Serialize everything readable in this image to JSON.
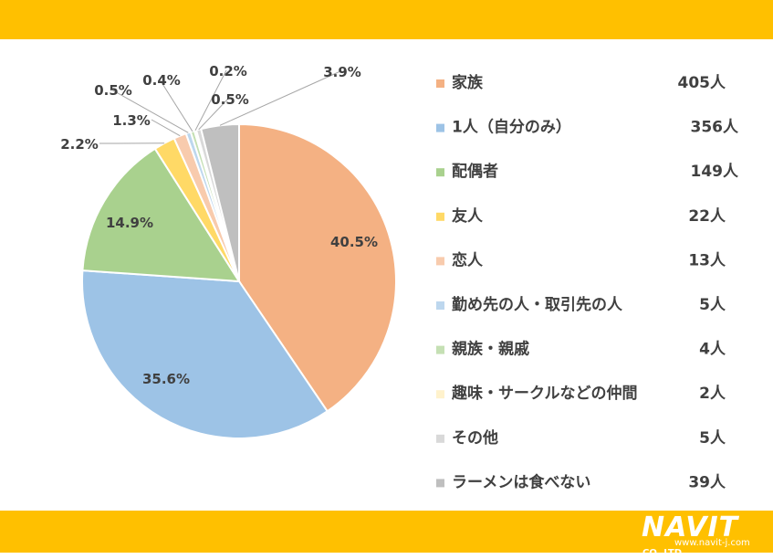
{
  "chart_data": {
    "type": "pie",
    "categories": [
      "家族",
      "1人（自分のみ）",
      "配偶者",
      "友人",
      "恋人",
      "勤め先の人・取引先の人",
      "親族・親戚",
      "趣味・サークルなどの仲間",
      "その他",
      "ラーメンは食べない"
    ],
    "values": [
      405,
      356,
      149,
      22,
      13,
      5,
      4,
      2,
      5,
      39
    ],
    "value_labels": [
      "405人",
      "356人",
      "149人",
      "22人",
      "13人",
      "5人",
      "4人",
      "2人",
      "5人",
      "39人"
    ],
    "percent_labels": [
      "40.5%",
      "35.6%",
      "14.9%",
      "2.2%",
      "1.3%",
      "0.5%",
      "0.4%",
      "0.2%",
      "0.5%",
      "3.9%"
    ],
    "colors": [
      "#F4B183",
      "#9DC3E6",
      "#A9D18E",
      "#FFD966",
      "#F8CBAD",
      "#BDD7EE",
      "#C5E0B4",
      "#FFF2CC",
      "#D9D9D9",
      "#BFBFBF"
    ],
    "start": "12 o'clock",
    "direction": "clockwise",
    "legend_position": "right"
  },
  "branding": {
    "name": "NAVIT",
    "suffix": "CO.,LTD.",
    "url": "www.navit-j.com"
  },
  "theme": {
    "bar_color": "#FFC000",
    "text_color": "#404040"
  }
}
